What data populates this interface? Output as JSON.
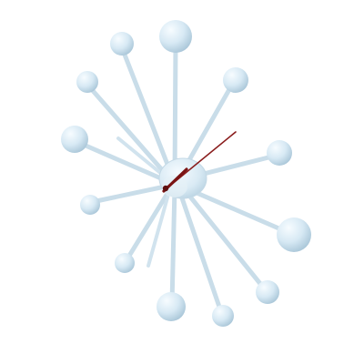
{
  "image": {
    "subject": "clock",
    "colors": {
      "background": "#ffffff",
      "sphere_light": "#f4fbff",
      "sphere_mid": "#d6e8f3",
      "sphere_dark": "#aecbdc",
      "rod": "#cfe1ec",
      "rod_shadow": "#b6cfdd",
      "hub": "#dcebf4",
      "hand": "#8a1d1d",
      "hand_dark": "#5e1010"
    },
    "icons": [
      "clock-icon",
      "ball-icon",
      "hand-icon"
    ]
  }
}
